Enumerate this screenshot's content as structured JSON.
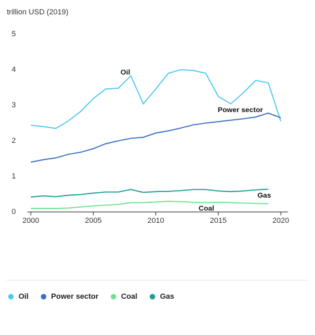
{
  "chart_data": {
    "type": "line",
    "y_axis_label": "trillion USD (2019)",
    "x": [
      2000,
      2001,
      2002,
      2003,
      2004,
      2005,
      2006,
      2007,
      2008,
      2009,
      2010,
      2011,
      2012,
      2013,
      2014,
      2015,
      2016,
      2017,
      2018,
      2019,
      2020
    ],
    "series": [
      {
        "name": "Oil",
        "color": "#4fc8f0",
        "values": [
          2.44,
          2.4,
          2.35,
          2.56,
          2.83,
          3.19,
          3.46,
          3.48,
          3.83,
          3.04,
          3.46,
          3.9,
          4.0,
          3.98,
          3.9,
          3.25,
          3.04,
          3.35,
          3.7,
          3.63,
          2.55
        ]
      },
      {
        "name": "Power sector",
        "color": "#3a6fc4",
        "values": [
          1.4,
          1.47,
          1.52,
          1.62,
          1.68,
          1.78,
          1.92,
          2.0,
          2.07,
          2.1,
          2.22,
          2.28,
          2.36,
          2.45,
          2.5,
          2.54,
          2.58,
          2.62,
          2.67,
          2.78,
          2.65
        ]
      },
      {
        "name": "Coal",
        "color": "#6ee38f",
        "values": [
          0.1,
          0.1,
          0.1,
          0.11,
          0.14,
          0.17,
          0.19,
          0.21,
          0.26,
          0.26,
          0.28,
          0.3,
          0.29,
          0.27,
          0.26,
          0.27,
          0.26,
          0.25,
          0.24,
          0.23,
          null
        ]
      },
      {
        "name": "Gas",
        "color": "#1a9e96",
        "values": [
          0.42,
          0.45,
          0.43,
          0.47,
          0.49,
          0.53,
          0.56,
          0.56,
          0.63,
          0.55,
          0.57,
          0.58,
          0.6,
          0.63,
          0.63,
          0.59,
          0.57,
          0.59,
          0.62,
          0.64,
          null
        ]
      }
    ],
    "annotations": [
      "Oil",
      "Power sector",
      "Gas",
      "Coal"
    ],
    "xlim": [
      2000,
      2020.3
    ],
    "xticks": [
      2000,
      2005,
      2010,
      2015,
      2020
    ],
    "ylim": [
      0,
      5
    ],
    "yticks": [
      0,
      1,
      2,
      3,
      4,
      5
    ],
    "grid": false,
    "legend": "bottom"
  }
}
